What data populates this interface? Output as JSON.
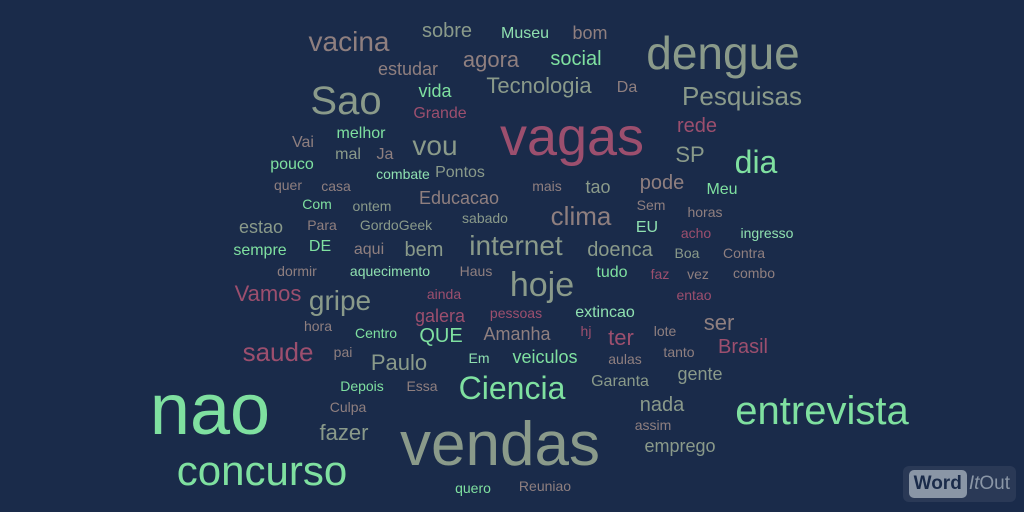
{
  "colors": {
    "background": "#1a2b4a",
    "green": "#7fe0a0",
    "gray": "#8a9a8a",
    "rose": "#9c4f6e",
    "taupe": "#8f7f7f",
    "mint": "#8fe0b0"
  },
  "logo": {
    "word": "Word",
    "it": "It",
    "out": "Out"
  },
  "words": [
    {
      "text": "nao",
      "color": "#7fe0a0"
    },
    {
      "text": "vendas",
      "color": "#8a9a8a"
    },
    {
      "text": "vagas",
      "color": "#9c4f6e"
    },
    {
      "text": "dengue",
      "color": "#8a9a8a"
    },
    {
      "text": "concurso",
      "color": "#7fe0a0"
    },
    {
      "text": "entrevista",
      "color": "#7fe0a0"
    },
    {
      "text": "Sao",
      "color": "#8a9a8a"
    },
    {
      "text": "hoje",
      "color": "#8a9a8a"
    },
    {
      "text": "Ciencia",
      "color": "#7fe0a0"
    },
    {
      "text": "dia",
      "color": "#7fe0a0"
    },
    {
      "text": "gripe",
      "color": "#8a9a8a"
    },
    {
      "text": "vacina",
      "color": "#8f7f7f"
    },
    {
      "text": "vou",
      "color": "#8a9a8a"
    },
    {
      "text": "internet",
      "color": "#8a9a8a"
    },
    {
      "text": "clima",
      "color": "#8f7f7f"
    },
    {
      "text": "saude",
      "color": "#9c4f6e"
    },
    {
      "text": "Pesquisas",
      "color": "#8a9a8a"
    },
    {
      "text": "Vamos",
      "color": "#9c4f6e"
    },
    {
      "text": "Tecnologia",
      "color": "#8a9a8a"
    },
    {
      "text": "SP",
      "color": "#8a9a8a"
    },
    {
      "text": "Paulo",
      "color": "#8a9a8a"
    },
    {
      "text": "ser",
      "color": "#8f7f7f"
    },
    {
      "text": "agora",
      "color": "#8f7f7f"
    },
    {
      "text": "social",
      "color": "#7fe0a0"
    },
    {
      "text": "sobre",
      "color": "#8a9a8a"
    },
    {
      "text": "fazer",
      "color": "#8a9a8a"
    },
    {
      "text": "QUE",
      "color": "#7fe0a0"
    },
    {
      "text": "rede",
      "color": "#9c4f6e"
    },
    {
      "text": "pode",
      "color": "#8f7f7f"
    },
    {
      "text": "ter",
      "color": "#9c4f6e"
    },
    {
      "text": "Brasil",
      "color": "#9c4f6e"
    },
    {
      "text": "nada",
      "color": "#8a9a8a"
    },
    {
      "text": "Educacao",
      "color": "#8f7f7f"
    },
    {
      "text": "bem",
      "color": "#8a9a8a"
    },
    {
      "text": "doenca",
      "color": "#8a9a8a"
    },
    {
      "text": "emprego",
      "color": "#8a9a8a"
    },
    {
      "text": "veiculos",
      "color": "#7fe0a0"
    },
    {
      "text": "Amanha",
      "color": "#8f7f7f"
    },
    {
      "text": "galera",
      "color": "#9c4f6e"
    },
    {
      "text": "Garanta",
      "color": "#8a9a8a"
    },
    {
      "text": "gente",
      "color": "#8a9a8a"
    },
    {
      "text": "estudar",
      "color": "#8f7f7f"
    },
    {
      "text": "tao",
      "color": "#8a9a8a"
    },
    {
      "text": "estao",
      "color": "#8a9a8a"
    },
    {
      "text": "Museu",
      "color": "#8fe0b0"
    },
    {
      "text": "bom",
      "color": "#8f7f7f"
    },
    {
      "text": "vida",
      "color": "#7fe0a0"
    },
    {
      "text": "Grande",
      "color": "#9c4f6e"
    },
    {
      "text": "Da",
      "color": "#8f7f7f"
    },
    {
      "text": "melhor",
      "color": "#7fe0a0"
    },
    {
      "text": "Vai",
      "color": "#8f7f7f"
    },
    {
      "text": "mal",
      "color": "#8a9a8a"
    },
    {
      "text": "Ja",
      "color": "#8f7f7f"
    },
    {
      "text": "pouco",
      "color": "#7fe0a0"
    },
    {
      "text": "Pontos",
      "color": "#8a9a8a"
    },
    {
      "text": "quer",
      "color": "#8f7f7f"
    },
    {
      "text": "casa",
      "color": "#8f7f7f"
    },
    {
      "text": "combate",
      "color": "#8fe0b0"
    },
    {
      "text": "mais",
      "color": "#8f7f7f"
    },
    {
      "text": "Meu",
      "color": "#7fe0a0"
    },
    {
      "text": "Com",
      "color": "#7fe0a0"
    },
    {
      "text": "ontem",
      "color": "#8a9a8a"
    },
    {
      "text": "Sem",
      "color": "#8f7f7f"
    },
    {
      "text": "horas",
      "color": "#8f7f7f"
    },
    {
      "text": "Para",
      "color": "#8f7f7f"
    },
    {
      "text": "GordoGeek",
      "color": "#8a9a8a"
    },
    {
      "text": "sabado",
      "color": "#8a9a8a"
    },
    {
      "text": "EU",
      "color": "#8fe0b0"
    },
    {
      "text": "ingresso",
      "color": "#8fe0b0"
    },
    {
      "text": "acho",
      "color": "#9c4f6e"
    },
    {
      "text": "sempre",
      "color": "#7fe0a0"
    },
    {
      "text": "DE",
      "color": "#7fe0a0"
    },
    {
      "text": "aqui",
      "color": "#8f7f7f"
    },
    {
      "text": "Boa",
      "color": "#8a9a8a"
    },
    {
      "text": "Contra",
      "color": "#8f7f7f"
    },
    {
      "text": "dormir",
      "color": "#8f7f7f"
    },
    {
      "text": "aquecimento",
      "color": "#8fe0b0"
    },
    {
      "text": "Haus",
      "color": "#8f7f7f"
    },
    {
      "text": "tudo",
      "color": "#7fe0a0"
    },
    {
      "text": "faz",
      "color": "#9c4f6e"
    },
    {
      "text": "vez",
      "color": "#8f7f7f"
    },
    {
      "text": "combo",
      "color": "#8f7f7f"
    },
    {
      "text": "ainda",
      "color": "#9c4f6e"
    },
    {
      "text": "entao",
      "color": "#9c4f6e"
    },
    {
      "text": "pessoas",
      "color": "#9c4f6e"
    },
    {
      "text": "extincao",
      "color": "#8fe0b0"
    },
    {
      "text": "hora",
      "color": "#8f7f7f"
    },
    {
      "text": "Centro",
      "color": "#7fe0a0"
    },
    {
      "text": "hj",
      "color": "#9c4f6e"
    },
    {
      "text": "lote",
      "color": "#8f7f7f"
    },
    {
      "text": "pai",
      "color": "#8f7f7f"
    },
    {
      "text": "tanto",
      "color": "#8f7f7f"
    },
    {
      "text": "Em",
      "color": "#8fe0b0"
    },
    {
      "text": "aulas",
      "color": "#8f7f7f"
    },
    {
      "text": "Depois",
      "color": "#7fe0a0"
    },
    {
      "text": "Essa",
      "color": "#8f7f7f"
    },
    {
      "text": "Culpa",
      "color": "#8f7f7f"
    },
    {
      "text": "assim",
      "color": "#8f7f7f"
    },
    {
      "text": "quero",
      "color": "#7fe0a0"
    },
    {
      "text": "Reuniao",
      "color": "#8f7f7f"
    }
  ]
}
